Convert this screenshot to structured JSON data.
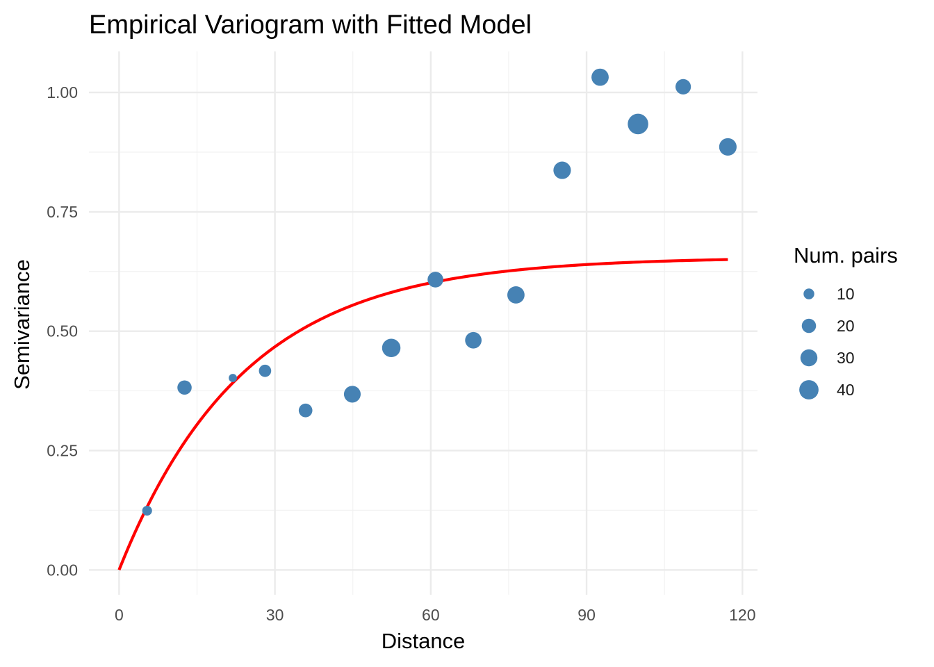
{
  "chart_data": {
    "type": "scatter",
    "title": "Empirical Variogram with Fitted Model",
    "xlabel": "Distance",
    "ylabel": "Semivariance",
    "xlim": [
      -5.8,
      122.9
    ],
    "ylim": [
      -0.052,
      1.086
    ],
    "x_ticks": [
      0,
      30,
      60,
      90,
      120
    ],
    "x_tick_labels": [
      "0",
      "30",
      "60",
      "90",
      "120"
    ],
    "x_minor": [
      15,
      45,
      75,
      105
    ],
    "y_ticks": [
      0,
      0.25,
      0.5,
      0.75,
      1.0
    ],
    "y_tick_labels": [
      "0.00",
      "0.25",
      "0.50",
      "0.75",
      "1.00"
    ],
    "y_minor": [
      0.125,
      0.375,
      0.625,
      0.875
    ],
    "grid": true,
    "point_color": "#4682B4",
    "line_color": "#FF0000",
    "series": [
      {
        "name": "Empirical variogram",
        "type": "scatter",
        "size_variable": "Num. pairs",
        "points": [
          {
            "x": 5.4,
            "y": 0.124,
            "np": 8
          },
          {
            "x": 12.6,
            "y": 0.382,
            "np": 20
          },
          {
            "x": 21.9,
            "y": 0.402,
            "np": 5
          },
          {
            "x": 28.1,
            "y": 0.417,
            "np": 14
          },
          {
            "x": 35.9,
            "y": 0.334,
            "np": 18
          },
          {
            "x": 44.9,
            "y": 0.368,
            "np": 29
          },
          {
            "x": 52.4,
            "y": 0.465,
            "np": 36
          },
          {
            "x": 60.9,
            "y": 0.608,
            "np": 25
          },
          {
            "x": 68.2,
            "y": 0.481,
            "np": 28
          },
          {
            "x": 76.4,
            "y": 0.576,
            "np": 31
          },
          {
            "x": 85.3,
            "y": 0.837,
            "np": 32
          },
          {
            "x": 92.6,
            "y": 1.032,
            "np": 31
          },
          {
            "x": 99.9,
            "y": 0.934,
            "np": 46
          },
          {
            "x": 108.6,
            "y": 1.012,
            "np": 24
          },
          {
            "x": 117.2,
            "y": 0.886,
            "np": 32
          }
        ]
      },
      {
        "name": "Fitted model",
        "type": "line",
        "model": "exponential",
        "nugget": 0,
        "sill": 0.655,
        "range": 24,
        "x_range": [
          0,
          117.2
        ]
      }
    ],
    "legend": {
      "title": "Num. pairs",
      "position": "right",
      "entries": [
        {
          "label": "10",
          "value": 10
        },
        {
          "label": "20",
          "value": 20
        },
        {
          "label": "30",
          "value": 30
        },
        {
          "label": "40",
          "value": 40
        }
      ]
    }
  }
}
